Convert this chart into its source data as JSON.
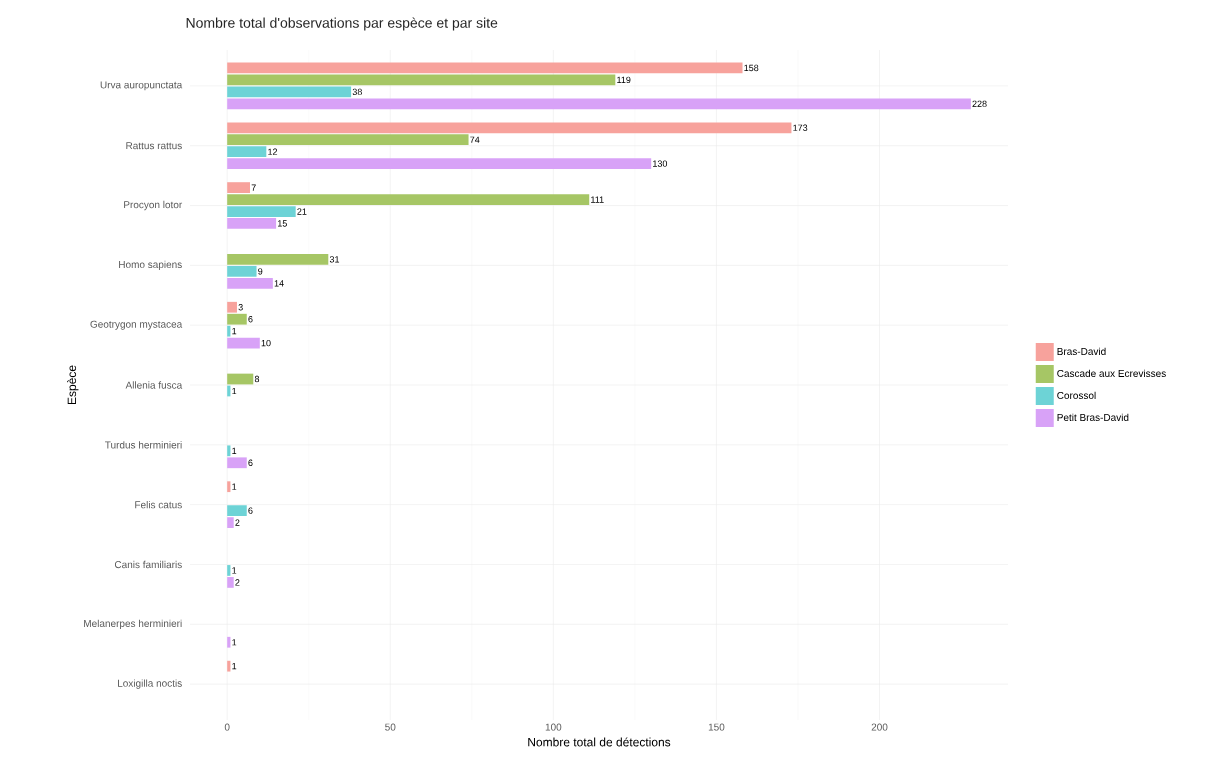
{
  "chart_data": {
    "type": "bar",
    "orientation": "horizontal",
    "title": "Nombre total d'observations par espèce et par site",
    "xlabel": "Nombre total de détections",
    "ylabel": "Espèce",
    "categories": [
      "Urva auropunctata",
      "Rattus rattus",
      "Procyon lotor",
      "Homo sapiens",
      "Geotrygon mystacea",
      "Allenia fusca",
      "Turdus herminieri",
      "Felis catus",
      "Canis familiaris",
      "Melanerpes herminieri",
      "Loxigilla noctis"
    ],
    "series": [
      {
        "name": "Bras-David",
        "color": "#f7a29c",
        "values": [
          158,
          173,
          7,
          null,
          3,
          null,
          null,
          1,
          null,
          null,
          1
        ]
      },
      {
        "name": "Cascade aux Ecrevisses",
        "color": "#a6c665",
        "values": [
          119,
          74,
          111,
          31,
          6,
          8,
          null,
          null,
          null,
          null,
          null
        ]
      },
      {
        "name": "Corossol",
        "color": "#6dd3d6",
        "values": [
          38,
          12,
          21,
          9,
          1,
          1,
          1,
          6,
          1,
          null,
          null
        ]
      },
      {
        "name": "Petit Bras-David",
        "color": "#d8a2f7",
        "values": [
          228,
          130,
          15,
          14,
          10,
          null,
          6,
          2,
          2,
          1,
          null
        ]
      }
    ],
    "xlim": [
      -11.4,
      239.4
    ],
    "xticks": [
      0,
      50,
      100,
      150,
      200
    ],
    "grid": true,
    "legend": "right",
    "data_labels": true
  }
}
